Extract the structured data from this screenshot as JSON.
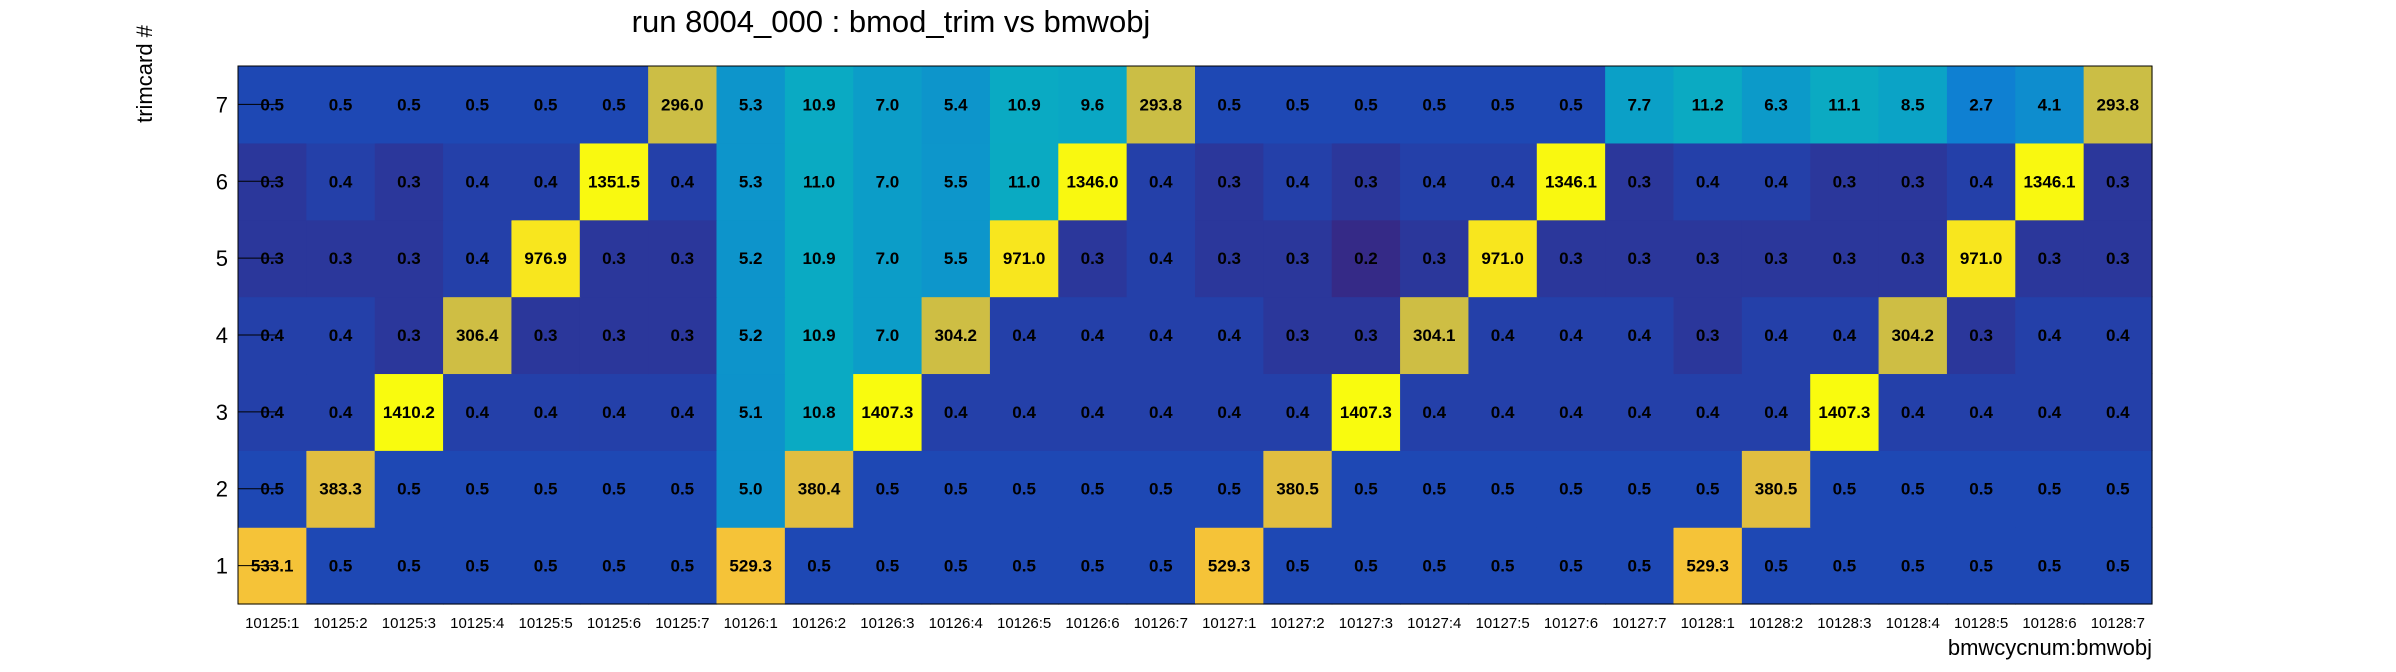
{
  "chart_data": {
    "type": "heatmap",
    "title": "run 8004_000 : bmod_trim vs bmwobj",
    "xlabel": "bmwcycnum:bmwobj",
    "ylabel": "trimcard #",
    "x_categories": [
      "10125:1",
      "10125:2",
      "10125:3",
      "10125:4",
      "10125:5",
      "10125:6",
      "10125:7",
      "10126:1",
      "10126:2",
      "10126:3",
      "10126:4",
      "10126:5",
      "10126:6",
      "10126:7",
      "10127:1",
      "10127:2",
      "10127:3",
      "10127:4",
      "10127:5",
      "10127:6",
      "10127:7",
      "10128:1",
      "10128:2",
      "10128:3",
      "10128:4",
      "10128:5",
      "10128:6",
      "10128:7"
    ],
    "y_categories": [
      "1",
      "2",
      "3",
      "4",
      "5",
      "6",
      "7"
    ],
    "grid": false,
    "legend": "none",
    "colormap": "parula",
    "values": [
      [
        "533.1",
        "0.5",
        "0.5",
        "0.5",
        "0.5",
        "0.5",
        "0.5",
        "529.3",
        "0.5",
        "0.5",
        "0.5",
        "0.5",
        "0.5",
        "0.5",
        "529.3",
        "0.5",
        "0.5",
        "0.5",
        "0.5",
        "0.5",
        "0.5",
        "529.3",
        "0.5",
        "0.5",
        "0.5",
        "0.5",
        "0.5",
        "0.5"
      ],
      [
        "0.5",
        "383.3",
        "0.5",
        "0.5",
        "0.5",
        "0.5",
        "0.5",
        "5.0",
        "380.4",
        "0.5",
        "0.5",
        "0.5",
        "0.5",
        "0.5",
        "0.5",
        "380.5",
        "0.5",
        "0.5",
        "0.5",
        "0.5",
        "0.5",
        "0.5",
        "380.5",
        "0.5",
        "0.5",
        "0.5",
        "0.5",
        "0.5"
      ],
      [
        "0.4",
        "0.4",
        "1410.2",
        "0.4",
        "0.4",
        "0.4",
        "0.4",
        "5.1",
        "10.8",
        "1407.3",
        "0.4",
        "0.4",
        "0.4",
        "0.4",
        "0.4",
        "0.4",
        "1407.3",
        "0.4",
        "0.4",
        "0.4",
        "0.4",
        "0.4",
        "0.4",
        "1407.3",
        "0.4",
        "0.4",
        "0.4",
        "0.4"
      ],
      [
        "0.4",
        "0.4",
        "0.3",
        "306.4",
        "0.3",
        "0.3",
        "0.3",
        "5.2",
        "10.9",
        "7.0",
        "304.2",
        "0.4",
        "0.4",
        "0.4",
        "0.4",
        "0.3",
        "0.3",
        "304.1",
        "0.4",
        "0.4",
        "0.4",
        "0.3",
        "0.4",
        "0.4",
        "304.2",
        "0.3",
        "0.4",
        "0.4"
      ],
      [
        "0.3",
        "0.3",
        "0.3",
        "0.4",
        "976.9",
        "0.3",
        "0.3",
        "5.2",
        "10.9",
        "7.0",
        "5.5",
        "971.0",
        "0.3",
        "0.4",
        "0.3",
        "0.3",
        "0.2",
        "0.3",
        "971.0",
        "0.3",
        "0.3",
        "0.3",
        "0.3",
        "0.3",
        "0.3",
        "971.0",
        "0.3",
        "0.3"
      ],
      [
        "0.3",
        "0.4",
        "0.3",
        "0.4",
        "0.4",
        "1351.5",
        "0.4",
        "5.3",
        "11.0",
        "7.0",
        "5.5",
        "11.0",
        "1346.0",
        "0.4",
        "0.3",
        "0.4",
        "0.3",
        "0.4",
        "0.4",
        "1346.1",
        "0.3",
        "0.4",
        "0.4",
        "0.3",
        "0.3",
        "0.4",
        "1346.1",
        "0.3"
      ],
      [
        "0.5",
        "0.5",
        "0.5",
        "0.5",
        "0.5",
        "0.5",
        "296.0",
        "5.3",
        "10.9",
        "7.0",
        "5.4",
        "10.9",
        "9.6",
        "293.8",
        "0.5",
        "0.5",
        "0.5",
        "0.5",
        "0.5",
        "0.5",
        "7.7",
        "11.2",
        "6.3",
        "11.1",
        "8.5",
        "2.7",
        "4.1",
        "293.8"
      ]
    ]
  }
}
